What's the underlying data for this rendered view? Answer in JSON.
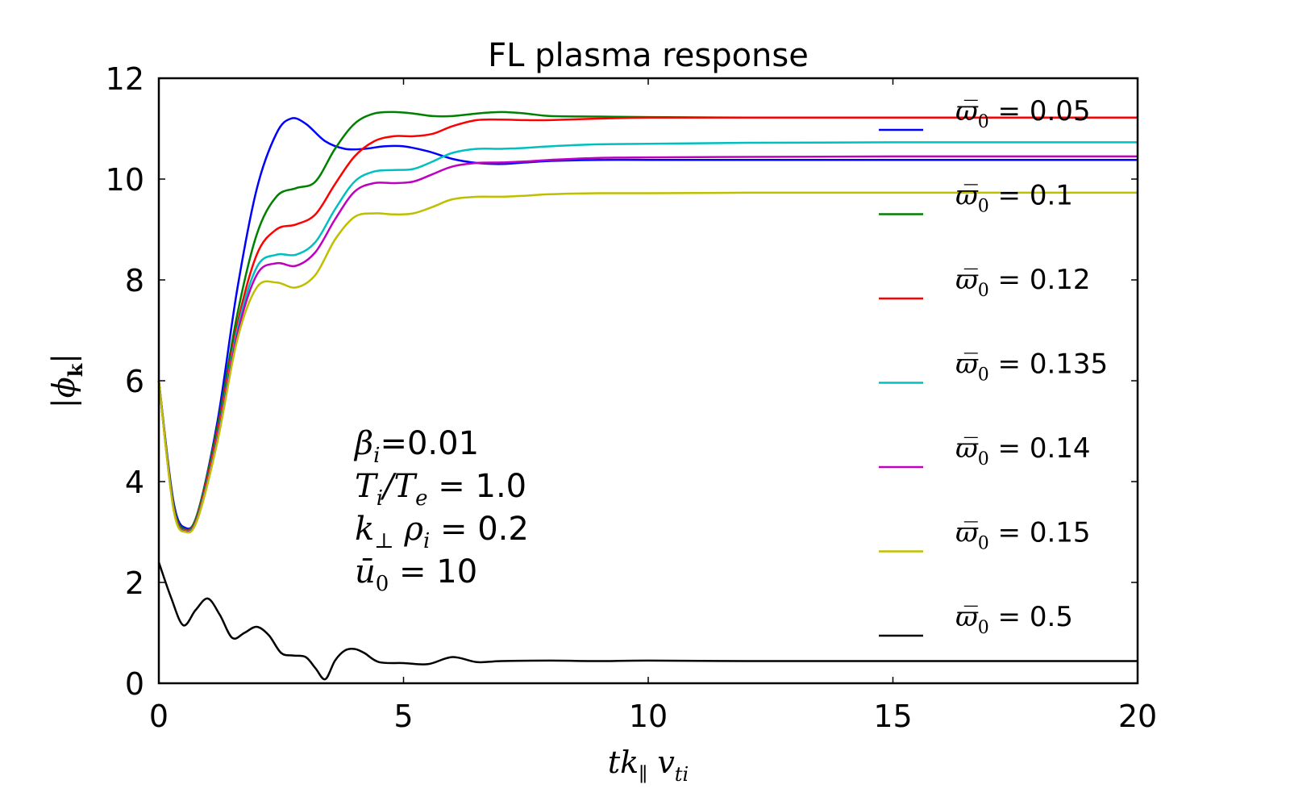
{
  "chart_data": {
    "type": "line",
    "title": "FL plasma response",
    "xlabel": "tk_∥ v_ti",
    "ylabel": "|ϕ_k|",
    "xlim": [
      0,
      20
    ],
    "ylim": [
      0,
      12
    ],
    "xticks": [
      "0",
      "5",
      "10",
      "15",
      "20"
    ],
    "yticks": [
      "0",
      "2",
      "4",
      "6",
      "8",
      "10",
      "12"
    ],
    "grid": false,
    "legend_position": "right",
    "annotation": [
      "β_i=0.01",
      "T_i/T_e = 1.0",
      "k_⊥ ρ_i = 0.2",
      "ū_0 = 10"
    ],
    "series": [
      {
        "name": "ϖ̅_0 = 0.05",
        "color": "#0000ff",
        "x": [
          0,
          0.3,
          0.55,
          0.8,
          1.2,
          1.6,
          2.0,
          2.4,
          2.7,
          3.0,
          3.4,
          3.8,
          4.2,
          4.6,
          5.0,
          5.5,
          6.0,
          6.5,
          7.0,
          7.5,
          8.0,
          9.0,
          10,
          12,
          15,
          20
        ],
        "y": [
          6.0,
          3.6,
          3.08,
          3.4,
          5.2,
          7.8,
          9.8,
          10.9,
          11.2,
          11.1,
          10.75,
          10.6,
          10.6,
          10.65,
          10.65,
          10.55,
          10.4,
          10.32,
          10.3,
          10.33,
          10.36,
          10.38,
          10.38,
          10.38,
          10.38,
          10.38
        ]
      },
      {
        "name": "ϖ̅_0 = 0.1",
        "color": "#008000",
        "x": [
          0,
          0.3,
          0.55,
          0.8,
          1.2,
          1.6,
          2.0,
          2.4,
          2.8,
          3.2,
          3.6,
          4.0,
          4.4,
          4.8,
          5.2,
          5.6,
          6.0,
          6.5,
          7.0,
          7.5,
          8.0,
          9.0,
          10,
          12,
          15,
          20
        ],
        "y": [
          6.0,
          3.55,
          3.05,
          3.4,
          5.1,
          7.3,
          8.9,
          9.65,
          9.82,
          9.95,
          10.6,
          11.1,
          11.3,
          11.33,
          11.3,
          11.25,
          11.25,
          11.3,
          11.33,
          11.3,
          11.25,
          11.24,
          11.23,
          11.22,
          11.22,
          11.22
        ]
      },
      {
        "name": "ϖ̅_0 = 0.12",
        "color": "#ff0000",
        "x": [
          0,
          0.3,
          0.55,
          0.8,
          1.2,
          1.6,
          2.0,
          2.4,
          2.8,
          3.2,
          3.6,
          4.0,
          4.4,
          4.8,
          5.2,
          5.6,
          6.0,
          6.5,
          7.0,
          7.5,
          8.0,
          9.0,
          10,
          12,
          15,
          20
        ],
        "y": [
          6.0,
          3.5,
          3.03,
          3.35,
          5.0,
          7.1,
          8.5,
          9.0,
          9.1,
          9.3,
          9.9,
          10.45,
          10.75,
          10.85,
          10.85,
          10.9,
          11.05,
          11.17,
          11.18,
          11.17,
          11.17,
          11.2,
          11.22,
          11.22,
          11.22,
          11.22
        ]
      },
      {
        "name": "ϖ̅_0 = 0.135",
        "color": "#00bfbf",
        "x": [
          0,
          0.3,
          0.55,
          0.8,
          1.2,
          1.6,
          2.0,
          2.4,
          2.8,
          3.2,
          3.6,
          4.0,
          4.4,
          4.8,
          5.2,
          5.6,
          6.0,
          6.5,
          7.0,
          7.5,
          8.0,
          9.0,
          10,
          12,
          15,
          20
        ],
        "y": [
          6.0,
          3.48,
          3.02,
          3.32,
          4.9,
          7.0,
          8.25,
          8.5,
          8.5,
          8.75,
          9.4,
          9.95,
          10.15,
          10.18,
          10.2,
          10.35,
          10.52,
          10.6,
          10.6,
          10.62,
          10.65,
          10.69,
          10.7,
          10.72,
          10.73,
          10.73
        ]
      },
      {
        "name": "ϖ̅_0 = 0.14",
        "color": "#bf00bf",
        "x": [
          0,
          0.3,
          0.55,
          0.8,
          1.2,
          1.6,
          2.0,
          2.4,
          2.8,
          3.2,
          3.6,
          4.0,
          4.4,
          4.8,
          5.2,
          5.6,
          6.0,
          6.5,
          7.0,
          7.5,
          8.0,
          9.0,
          10,
          12,
          15,
          20
        ],
        "y": [
          6.0,
          3.47,
          3.01,
          3.3,
          4.85,
          6.9,
          8.1,
          8.33,
          8.28,
          8.55,
          9.2,
          9.75,
          9.92,
          9.92,
          9.95,
          10.1,
          10.25,
          10.32,
          10.33,
          10.35,
          10.38,
          10.42,
          10.43,
          10.44,
          10.45,
          10.45
        ]
      },
      {
        "name": "ϖ̅_0 = 0.15",
        "color": "#bfbf00",
        "x": [
          0,
          0.3,
          0.55,
          0.8,
          1.2,
          1.6,
          2.0,
          2.4,
          2.8,
          3.2,
          3.6,
          4.0,
          4.4,
          4.8,
          5.2,
          5.6,
          6.0,
          6.5,
          7.0,
          7.5,
          8.0,
          9.0,
          10,
          12,
          15,
          20
        ],
        "y": [
          6.0,
          3.45,
          3.0,
          3.28,
          4.8,
          6.8,
          7.85,
          7.95,
          7.85,
          8.1,
          8.8,
          9.25,
          9.32,
          9.3,
          9.32,
          9.45,
          9.6,
          9.65,
          9.65,
          9.67,
          9.7,
          9.72,
          9.72,
          9.73,
          9.73,
          9.73
        ]
      },
      {
        "name": "ϖ̅_0 = 0.5",
        "color": "#000000",
        "x": [
          0,
          0.25,
          0.5,
          0.75,
          1.0,
          1.25,
          1.5,
          1.75,
          2.0,
          2.25,
          2.5,
          2.75,
          3.0,
          3.2,
          3.4,
          3.6,
          3.8,
          4.0,
          4.2,
          4.5,
          5.0,
          5.5,
          6.0,
          6.5,
          7.0,
          8.0,
          9.0,
          10,
          12,
          15,
          20
        ],
        "y": [
          2.4,
          1.7,
          1.15,
          1.45,
          1.68,
          1.35,
          0.9,
          1.0,
          1.12,
          0.95,
          0.6,
          0.55,
          0.52,
          0.3,
          0.08,
          0.45,
          0.65,
          0.68,
          0.6,
          0.42,
          0.4,
          0.38,
          0.52,
          0.42,
          0.44,
          0.45,
          0.44,
          0.45,
          0.44,
          0.44,
          0.44
        ]
      }
    ]
  }
}
